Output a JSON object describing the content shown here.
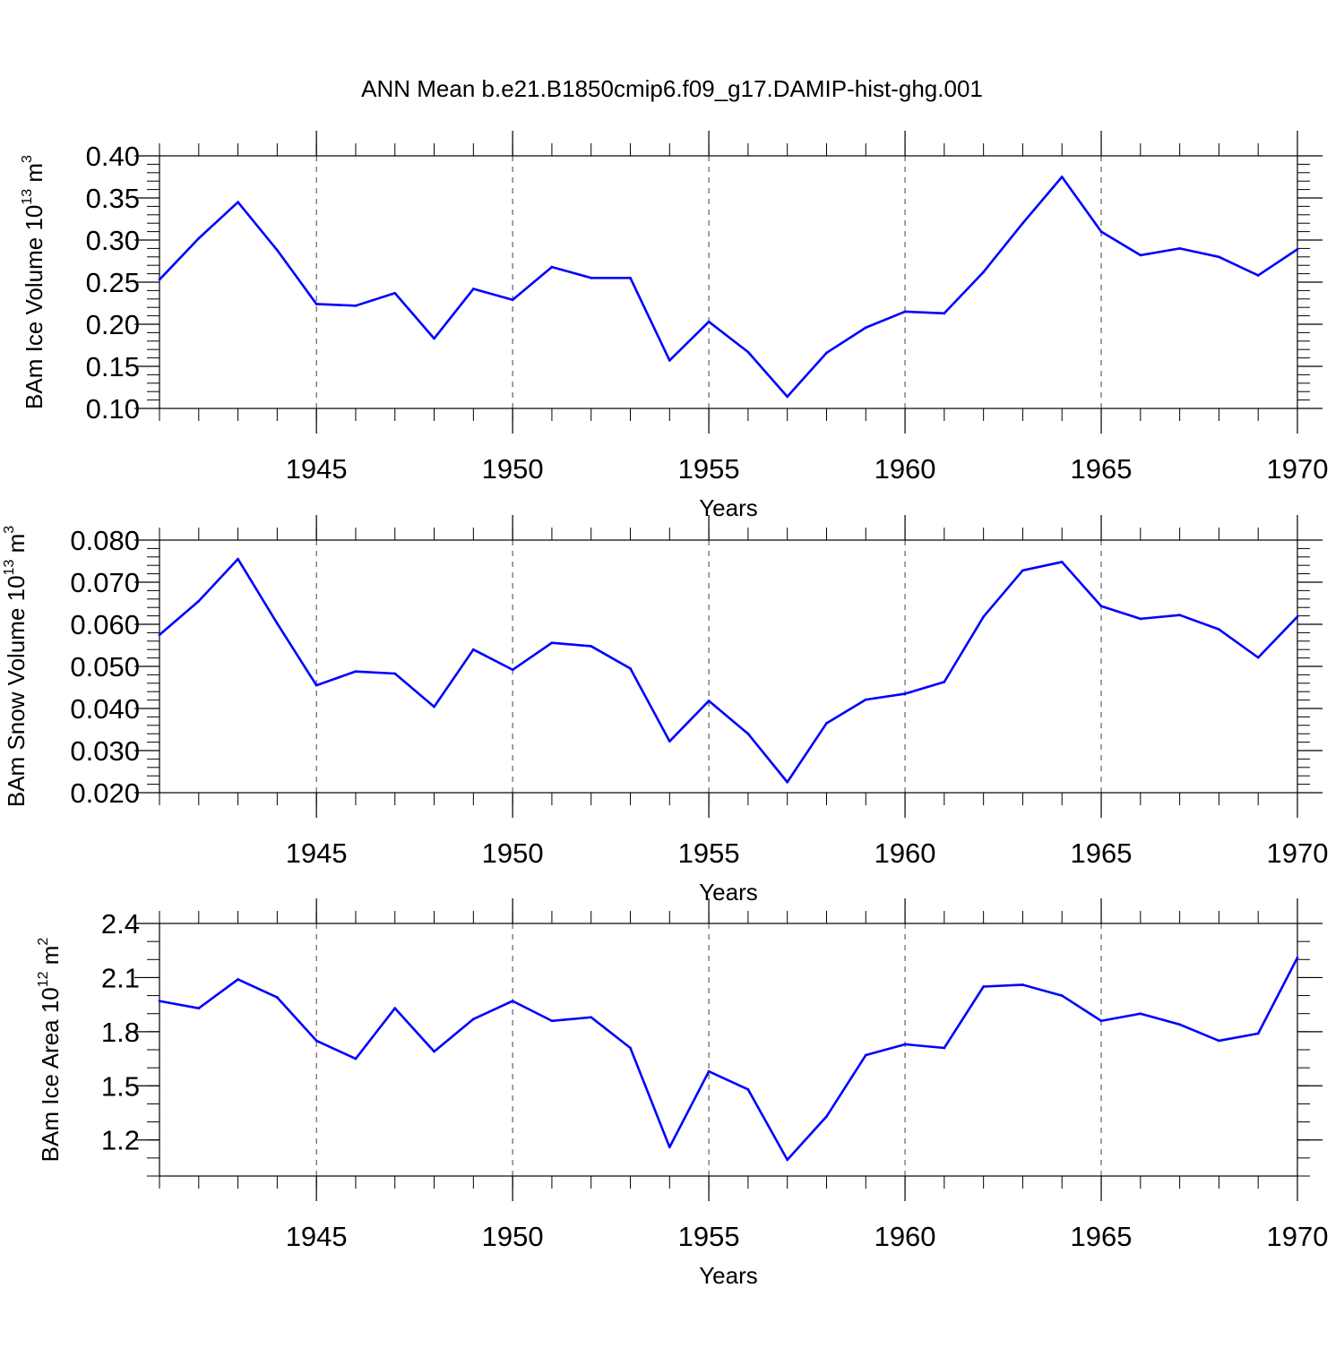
{
  "title": "ANN Mean b.e21.B1850cmip6.f09_g17.DAMIP-hist-ghg.001",
  "colors": {
    "line": "#0000ff",
    "axis": "#000000",
    "grid": "#444444"
  },
  "chart_data": [
    {
      "type": "line",
      "title": "",
      "xlabel": "Years",
      "ylabel": "BAm Ice Volume 10",
      "ylabel_exp": "13",
      "ylabel_unit": "m",
      "ylabel_unit_exp": "3",
      "xlim": [
        1941,
        1970
      ],
      "ylim": [
        0.1,
        0.4
      ],
      "yticks": [
        0.1,
        0.15,
        0.2,
        0.25,
        0.3,
        0.35,
        0.4
      ],
      "ytick_labels": [
        "0.10",
        "0.15",
        "0.20",
        "0.25",
        "0.30",
        "0.35",
        "0.40"
      ],
      "yminor": 0.01,
      "xticks": [
        1945,
        1950,
        1955,
        1960,
        1965,
        1970
      ],
      "xtick_labels": [
        "1945",
        "1950",
        "1955",
        "1960",
        "1965",
        "1970"
      ],
      "grid": "vertical dashed at major x ticks",
      "x": [
        1941,
        1942,
        1943,
        1944,
        1945,
        1946,
        1947,
        1948,
        1949,
        1950,
        1951,
        1952,
        1953,
        1954,
        1955,
        1956,
        1957,
        1958,
        1959,
        1960,
        1961,
        1962,
        1963,
        1964,
        1965,
        1966,
        1967,
        1968,
        1969,
        1970
      ],
      "series": [
        {
          "name": "Ice Volume",
          "values": [
            0.253,
            0.302,
            0.345,
            0.288,
            0.224,
            0.222,
            0.237,
            0.183,
            0.242,
            0.229,
            0.268,
            0.255,
            0.255,
            0.157,
            0.203,
            0.167,
            0.114,
            0.166,
            0.196,
            0.215,
            0.213,
            0.262,
            0.32,
            0.375,
            0.31,
            0.282,
            0.29,
            0.28,
            0.258,
            0.289
          ]
        }
      ]
    },
    {
      "type": "line",
      "title": "",
      "xlabel": "Years",
      "ylabel": "BAm Snow Volume 10",
      "ylabel_exp": "13",
      "ylabel_unit": "m",
      "ylabel_unit_exp": "3",
      "xlim": [
        1941,
        1970
      ],
      "ylim": [
        0.02,
        0.08
      ],
      "yticks": [
        0.02,
        0.03,
        0.04,
        0.05,
        0.06,
        0.07,
        0.08
      ],
      "ytick_labels": [
        "0.020",
        "0.030",
        "0.040",
        "0.050",
        "0.060",
        "0.070",
        "0.080"
      ],
      "yminor": 0.002,
      "xticks": [
        1945,
        1950,
        1955,
        1960,
        1965,
        1970
      ],
      "xtick_labels": [
        "1945",
        "1950",
        "1955",
        "1960",
        "1965",
        "1970"
      ],
      "grid": "vertical dashed at major x ticks",
      "x": [
        1941,
        1942,
        1943,
        1944,
        1945,
        1946,
        1947,
        1948,
        1949,
        1950,
        1951,
        1952,
        1953,
        1954,
        1955,
        1956,
        1957,
        1958,
        1959,
        1960,
        1961,
        1962,
        1963,
        1964,
        1965,
        1966,
        1967,
        1968,
        1969,
        1970
      ],
      "series": [
        {
          "name": "Snow Volume",
          "values": [
            0.0575,
            0.0655,
            0.0755,
            0.0602,
            0.0455,
            0.0488,
            0.0483,
            0.0404,
            0.054,
            0.0492,
            0.0556,
            0.0548,
            0.0495,
            0.0322,
            0.0418,
            0.034,
            0.0225,
            0.0365,
            0.0421,
            0.0435,
            0.0463,
            0.0618,
            0.0728,
            0.0748,
            0.0643,
            0.0613,
            0.0622,
            0.0588,
            0.0521,
            0.0618
          ]
        }
      ]
    },
    {
      "type": "line",
      "title": "",
      "xlabel": "Years",
      "ylabel": "BAm Ice Area 10",
      "ylabel_exp": "12",
      "ylabel_unit": "m",
      "ylabel_unit_exp": "2",
      "xlim": [
        1941,
        1970
      ],
      "ylim": [
        1.0,
        2.4
      ],
      "yticks": [
        1.2,
        1.5,
        1.8,
        2.1,
        2.4
      ],
      "ytick_labels": [
        "1.2",
        "1.5",
        "1.8",
        "2.1",
        "2.4"
      ],
      "yminor": 0.1,
      "xticks": [
        1945,
        1950,
        1955,
        1960,
        1965,
        1970
      ],
      "xtick_labels": [
        "1945",
        "1950",
        "1955",
        "1960",
        "1965",
        "1970"
      ],
      "grid": "vertical dashed at major x ticks",
      "x": [
        1941,
        1942,
        1943,
        1944,
        1945,
        1946,
        1947,
        1948,
        1949,
        1950,
        1951,
        1952,
        1953,
        1954,
        1955,
        1956,
        1957,
        1958,
        1959,
        1960,
        1961,
        1962,
        1963,
        1964,
        1965,
        1966,
        1967,
        1968,
        1969,
        1970
      ],
      "series": [
        {
          "name": "Ice Area",
          "values": [
            1.97,
            1.93,
            2.09,
            1.99,
            1.75,
            1.65,
            1.93,
            1.69,
            1.87,
            1.97,
            1.86,
            1.88,
            1.71,
            1.16,
            1.58,
            1.48,
            1.09,
            1.33,
            1.67,
            1.73,
            1.71,
            2.05,
            2.06,
            2.0,
            1.86,
            1.9,
            1.84,
            1.75,
            1.79,
            2.21
          ]
        }
      ]
    }
  ]
}
